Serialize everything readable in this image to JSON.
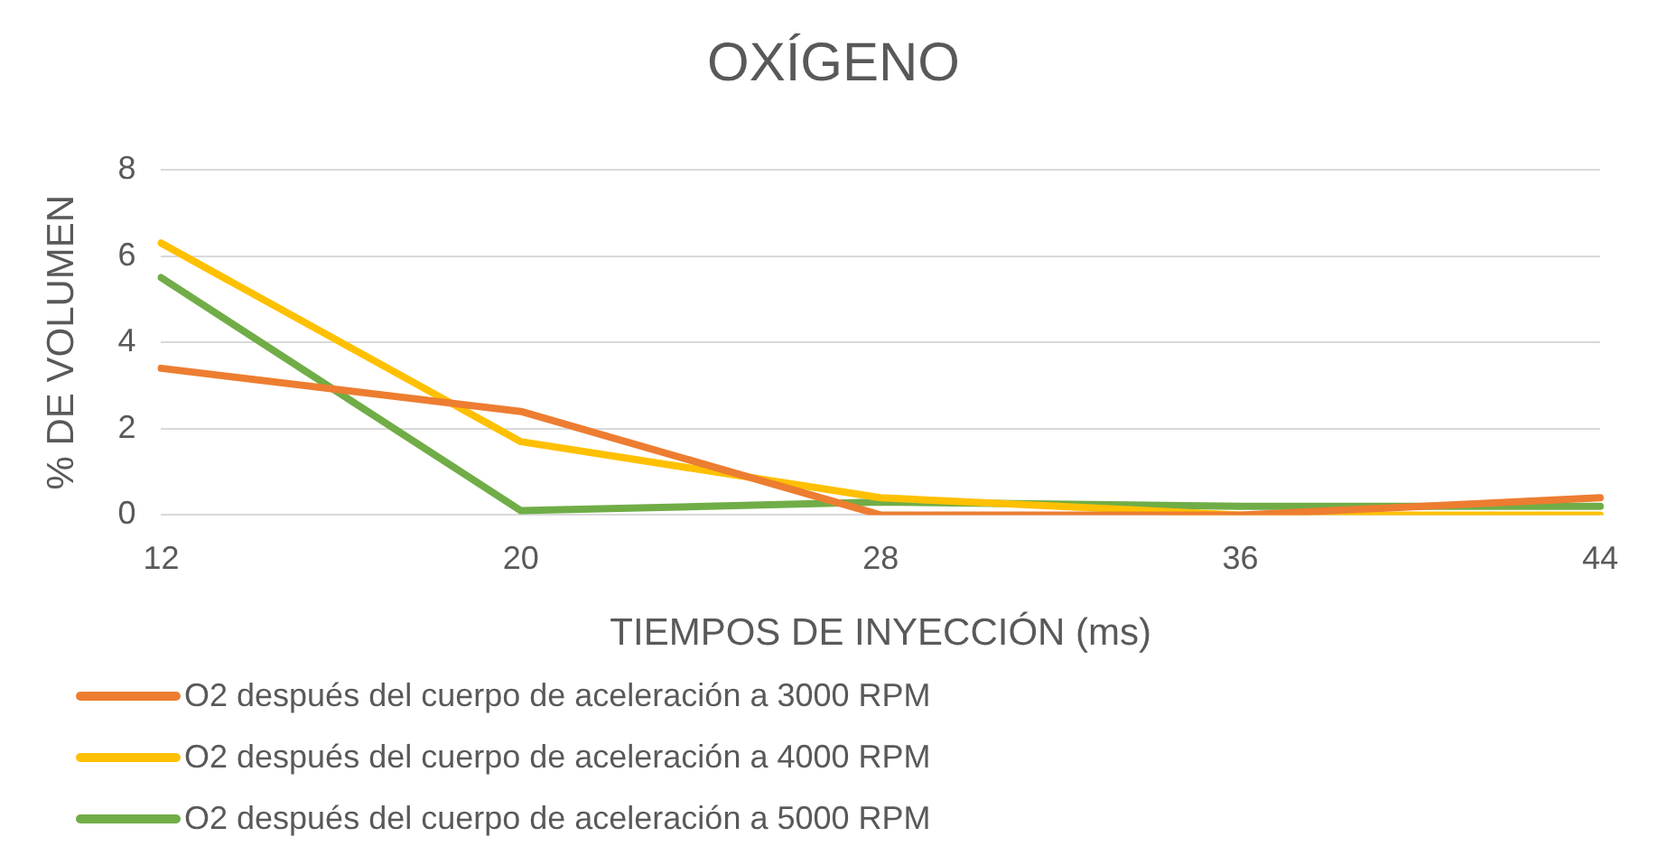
{
  "chart_data": {
    "type": "line",
    "title": "OXÍGENO",
    "xlabel": "TIEMPOS DE INYECCIÓN (ms)",
    "ylabel": "% DE VOLUMEN",
    "categories": [
      "12",
      "20",
      "28",
      "36",
      "44"
    ],
    "series": [
      {
        "name": "O2 después del cuerpo de aceleración a 3000 RPM",
        "color": "#ed7d31",
        "values": [
          3.4,
          2.4,
          0,
          0,
          0.4
        ]
      },
      {
        "name": "O2 después del cuerpo de aceleración a 4000 RPM",
        "color": "#ffc000",
        "values": [
          6.3,
          1.7,
          0.4,
          0,
          0
        ]
      },
      {
        "name": "O2 después del cuerpo de aceleración a 5000 RPM",
        "color": "#70ad47",
        "values": [
          5.5,
          0.1,
          0.3,
          0.2,
          0.2
        ]
      }
    ],
    "ylim": [
      0,
      8
    ],
    "yticks": [
      0,
      2,
      4,
      6,
      8
    ],
    "grid": "y",
    "legend": "bottom left",
    "marker": "none",
    "line_style": "solid"
  }
}
